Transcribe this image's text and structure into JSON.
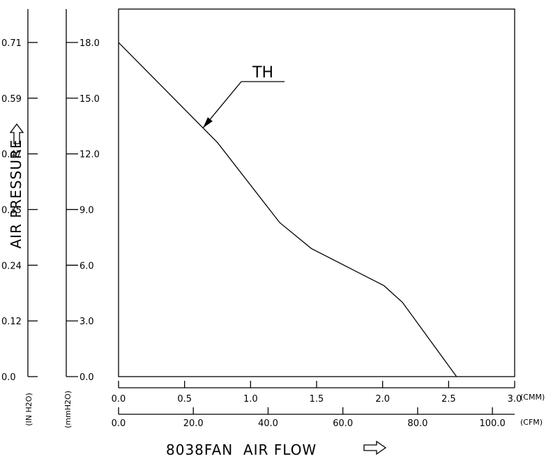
{
  "chart_data": {
    "type": "line",
    "title": "",
    "xlabel": "8038FAN  AIR FLOW",
    "ylabel": "AIR PRESSURE",
    "x_units": [
      "(CMM)",
      "(CFM)"
    ],
    "y_units": [
      "(IN H2O)",
      "(mmH2O)"
    ],
    "xlim": [
      0,
      3.0
    ],
    "ylim": [
      0,
      19.8
    ],
    "x_ticks_cmm": [
      "0.0",
      "0.5",
      "1.0",
      "1.5",
      "2.0",
      "2.5",
      "3.0"
    ],
    "x_ticks_cfm": [
      "0.0",
      "20.0",
      "40.0",
      "60.0",
      "80.0",
      "100.0"
    ],
    "x_ticks_cfm_values": [
      0.0,
      20.0,
      40.0,
      60.0,
      80.0,
      100.0
    ],
    "y_ticks_mmh2o": [
      "0.0",
      "3.0",
      "6.0",
      "9.0",
      "12.0",
      "15.0",
      "18.0"
    ],
    "y_ticks_inh2o": [
      "0.0",
      "0.12",
      "0.24",
      "0.35",
      "0.47",
      "0.59",
      "0.71"
    ],
    "grid": false,
    "series": [
      {
        "name": "TH",
        "x": [
          0.0,
          0.75,
          1.22,
          1.46,
          2.01,
          2.15,
          2.56
        ],
        "y": [
          18.0,
          12.6,
          8.3,
          6.9,
          4.9,
          4.0,
          0.0
        ]
      }
    ],
    "annotations": [
      {
        "text": "TH",
        "points_to_x": 0.64,
        "points_to_y": 13.4
      }
    ]
  }
}
